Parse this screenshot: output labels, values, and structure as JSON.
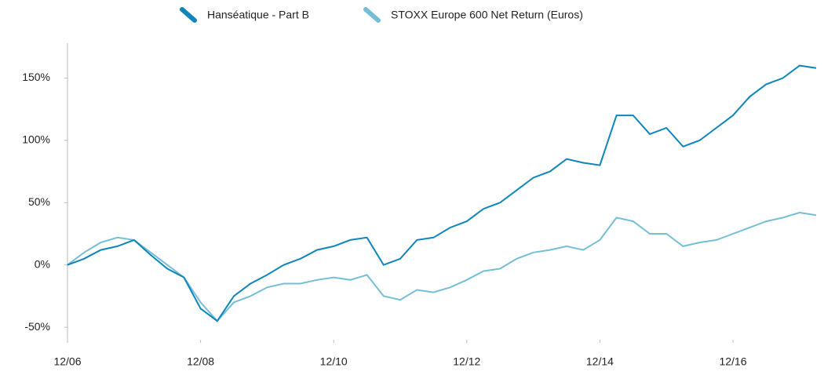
{
  "chart_data": {
    "type": "line",
    "x": [
      "12/06",
      "03/07",
      "06/07",
      "09/07",
      "12/07",
      "03/08",
      "06/08",
      "09/08",
      "12/08",
      "03/09",
      "06/09",
      "09/09",
      "12/09",
      "03/10",
      "06/10",
      "09/10",
      "12/10",
      "03/11",
      "06/11",
      "09/11",
      "12/11",
      "03/12",
      "06/12",
      "09/12",
      "12/12",
      "03/13",
      "06/13",
      "09/13",
      "12/13",
      "03/14",
      "06/14",
      "09/14",
      "12/14",
      "03/15",
      "06/15",
      "09/15",
      "12/15",
      "03/16",
      "06/16",
      "09/16",
      "12/16",
      "03/17",
      "06/17",
      "09/17",
      "12/17",
      "03/18"
    ],
    "series": [
      {
        "name": "Hanséatique - Part B",
        "color": "#0e86bb",
        "values": [
          0,
          5,
          12,
          15,
          20,
          8,
          -3,
          -10,
          -35,
          -45,
          -25,
          -15,
          -8,
          0,
          5,
          12,
          15,
          20,
          22,
          0,
          5,
          20,
          22,
          30,
          35,
          45,
          50,
          60,
          70,
          75,
          85,
          82,
          80,
          120,
          120,
          105,
          110,
          95,
          100,
          110,
          120,
          135,
          145,
          150,
          160,
          158
        ]
      },
      {
        "name": "STOXX Europe 600 Net Return (Euros)",
        "color": "#74bfd6",
        "values": [
          0,
          10,
          18,
          22,
          20,
          10,
          0,
          -10,
          -30,
          -45,
          -30,
          -25,
          -18,
          -15,
          -15,
          -12,
          -10,
          -12,
          -8,
          -25,
          -28,
          -20,
          -22,
          -18,
          -12,
          -5,
          -3,
          5,
          10,
          12,
          15,
          12,
          20,
          38,
          35,
          25,
          25,
          15,
          18,
          20,
          25,
          30,
          35,
          38,
          42,
          40
        ]
      }
    ],
    "xticks": [
      "12/06",
      "12/08",
      "12/10",
      "12/12",
      "12/14",
      "12/16"
    ],
    "ylim": [
      -60,
      178
    ],
    "yticks": [
      {
        "value": -50,
        "label": "-50%"
      },
      {
        "value": 0,
        "label": "0%"
      },
      {
        "value": 50,
        "label": "50%"
      },
      {
        "value": 100,
        "label": "100%"
      },
      {
        "value": 150,
        "label": "150%"
      }
    ]
  }
}
